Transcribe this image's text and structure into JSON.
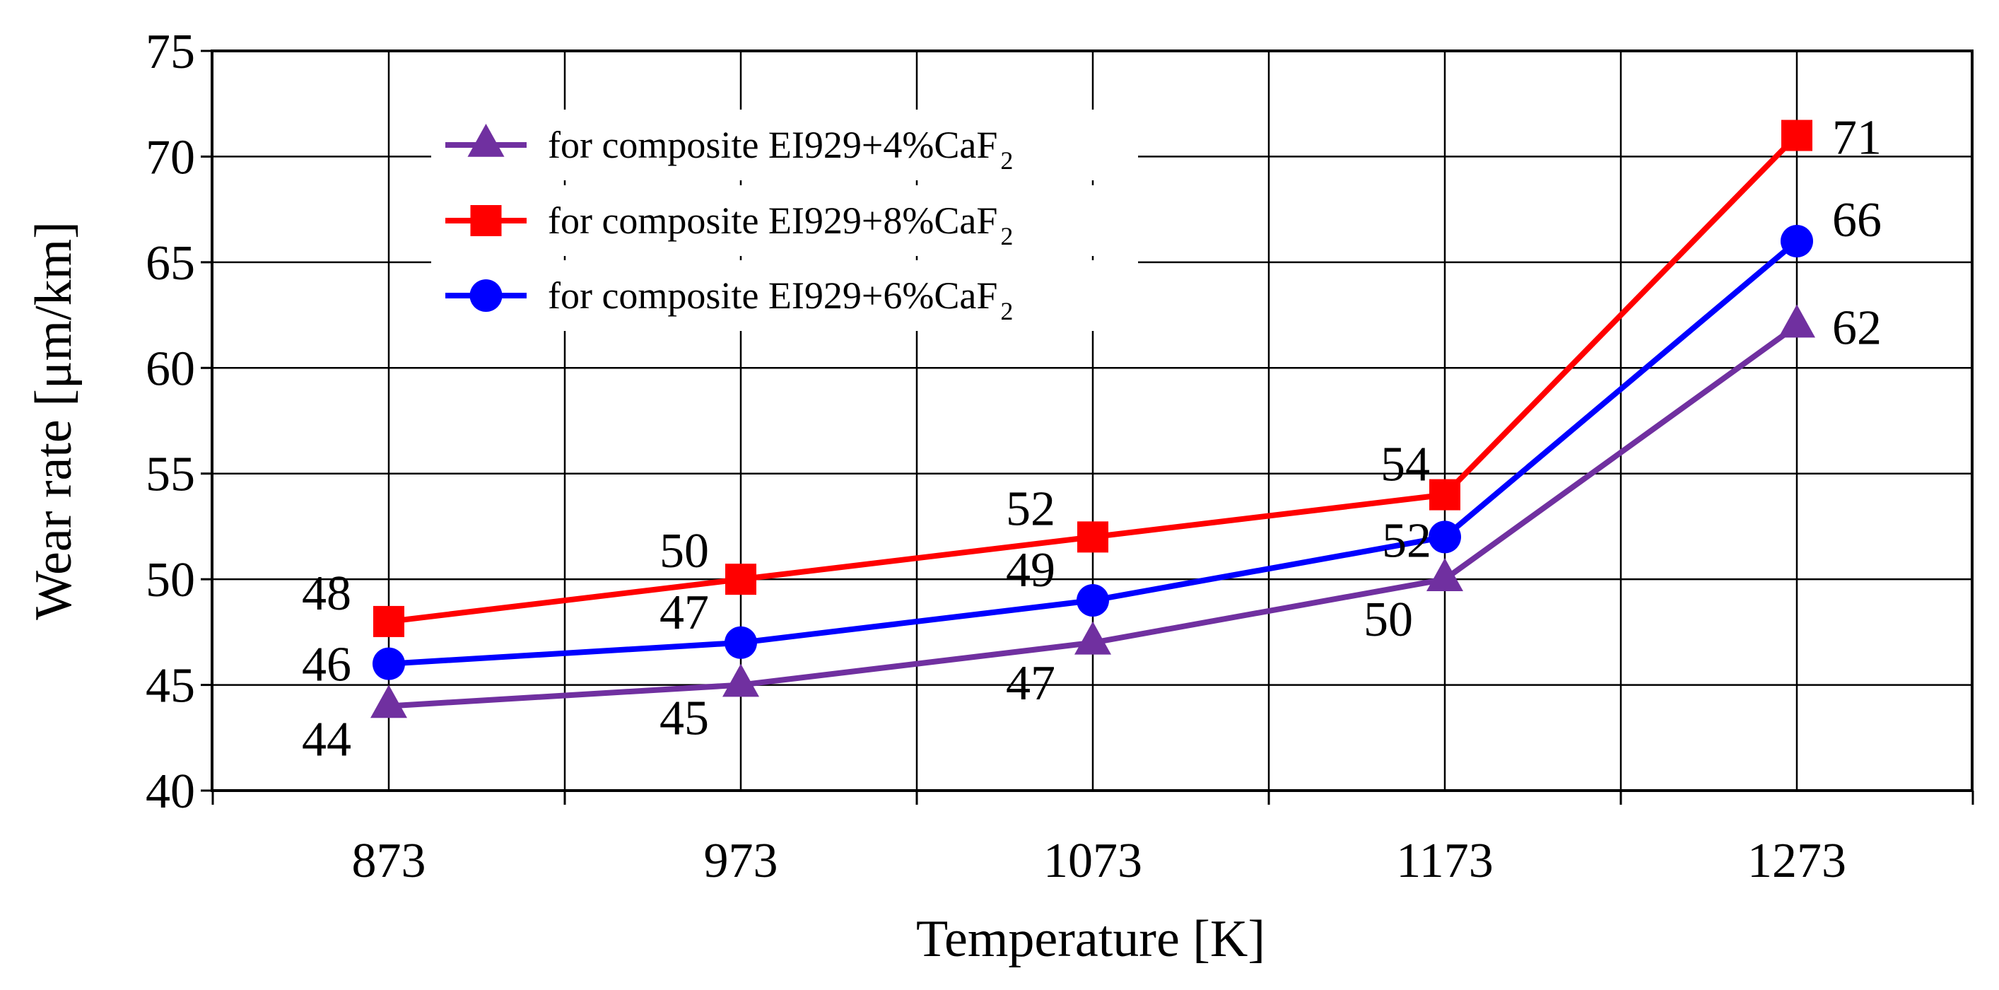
{
  "chart_data": {
    "type": "line",
    "xlabel": "Temperature [K]",
    "ylabel": "Wear rate [μm/km]",
    "categories": [
      "873",
      "973",
      "1073",
      "1173",
      "1273"
    ],
    "ylim": [
      40,
      75
    ],
    "yticks": [
      "40",
      "45",
      "50",
      "55",
      "60",
      "65",
      "70",
      "75"
    ],
    "grid": true,
    "legend_position": "top-left",
    "series": [
      {
        "name": "for composite EI929+4%CaF2",
        "legend_main": "for composite EI929+4%CaF",
        "legend_sub": "2",
        "color": "#7030A0",
        "marker": "triangle",
        "values": [
          44,
          45,
          47,
          50,
          62
        ],
        "labels": [
          "44",
          "45",
          "47",
          "50",
          "62"
        ]
      },
      {
        "name": "for composite EI929+8%CaF2",
        "legend_main": "for composite EI929+8%CaF",
        "legend_sub": "2",
        "color": "#FF0000",
        "marker": "square",
        "values": [
          48,
          50,
          52,
          54,
          71
        ],
        "labels": [
          "48",
          "50",
          "52",
          "54",
          "71"
        ]
      },
      {
        "name": "for composite EI929+6%CaF2",
        "legend_main": "for composite EI929+6%CaF",
        "legend_sub": "2",
        "color": "#0000FF",
        "marker": "circle",
        "values": [
          46,
          47,
          49,
          52,
          66
        ],
        "labels": [
          "46",
          "47",
          "49",
          "52",
          "66"
        ]
      }
    ]
  }
}
